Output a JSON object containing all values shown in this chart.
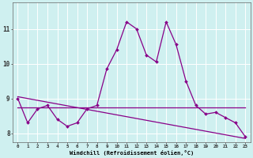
{
  "xlabel": "Windchill (Refroidissement éolien,°C)",
  "background_color": "#cff0f0",
  "grid_color": "#ffffff",
  "line_color": "#880088",
  "hours": [
    0,
    1,
    2,
    3,
    4,
    5,
    6,
    7,
    8,
    9,
    10,
    11,
    12,
    13,
    14,
    15,
    16,
    17,
    18,
    19,
    20,
    21,
    22,
    23
  ],
  "main_line": [
    9.0,
    8.3,
    8.7,
    8.8,
    8.4,
    8.2,
    8.3,
    8.7,
    8.8,
    9.85,
    10.4,
    11.2,
    11.0,
    10.25,
    10.05,
    11.2,
    10.55,
    9.5,
    8.8,
    8.55,
    8.6,
    8.45,
    8.3,
    7.9
  ],
  "flat_line_x": [
    0,
    1,
    2,
    3,
    4,
    5,
    6,
    7,
    8,
    9,
    10,
    11,
    12,
    13,
    14,
    15,
    16,
    17,
    18,
    19,
    20,
    21,
    22,
    23
  ],
  "flat_line_y": [
    8.75,
    8.75,
    8.75,
    8.75,
    8.75,
    8.75,
    8.75,
    8.75,
    8.75,
    8.75,
    8.75,
    8.75,
    8.75,
    8.75,
    8.75,
    8.75,
    8.75,
    8.75,
    8.75,
    8.75,
    8.75,
    8.75,
    8.75,
    8.75
  ],
  "trend_line_x": [
    0,
    23
  ],
  "trend_line_y": [
    9.05,
    7.85
  ],
  "ylim": [
    7.75,
    11.75
  ],
  "yticks": [
    8,
    9,
    10,
    11
  ],
  "xlim": [
    -0.5,
    23.5
  ],
  "figsize": [
    3.2,
    2.0
  ],
  "dpi": 100
}
